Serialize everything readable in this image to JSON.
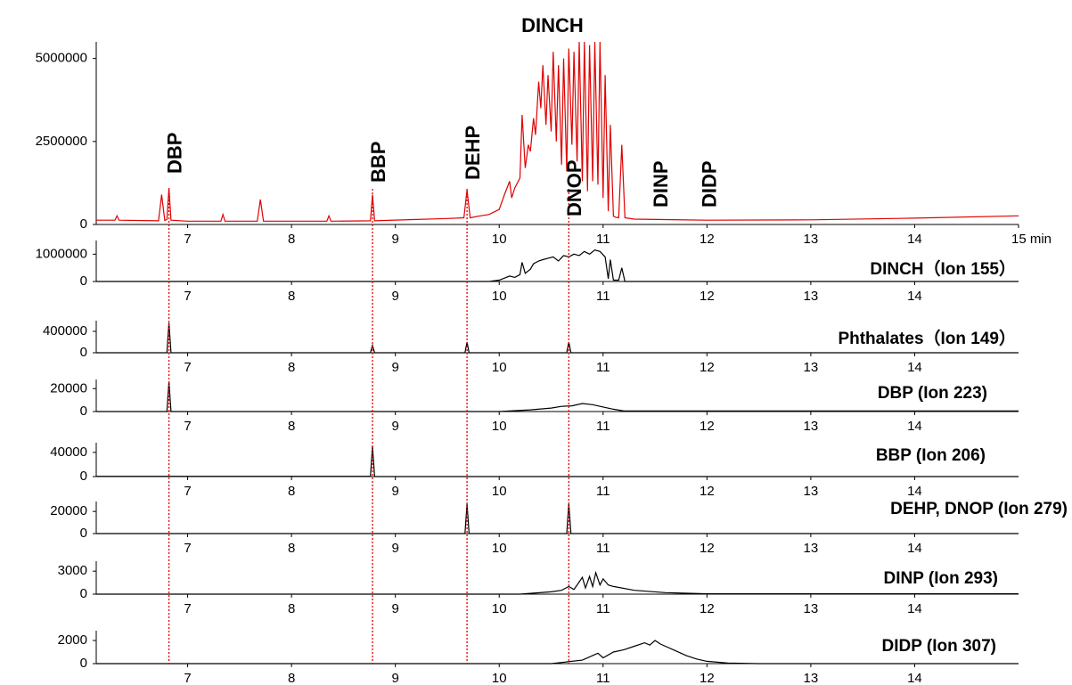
{
  "chart_data": [
    {
      "type": "line",
      "title": "DINCH",
      "color": "#e00000",
      "xlim": [
        6.12,
        15
      ],
      "xticks": [
        7,
        8,
        9,
        10,
        11,
        12,
        13,
        14,
        {
          "value": 15,
          "label": "15 min"
        }
      ],
      "ylim": [
        0,
        5500000
      ],
      "yticks": [
        0,
        2500000,
        5000000
      ],
      "x": [
        6.12,
        6.3,
        6.32,
        6.34,
        6.72,
        6.75,
        6.78,
        6.8,
        6.82,
        6.84,
        7.0,
        7.32,
        7.34,
        7.36,
        7.67,
        7.7,
        7.73,
        8.34,
        8.36,
        8.38,
        8.76,
        8.78,
        8.8,
        9.2,
        9.4,
        9.5,
        9.66,
        9.69,
        9.72,
        9.8,
        9.9,
        10.0,
        10.05,
        10.1,
        10.12,
        10.15,
        10.2,
        10.22,
        10.25,
        10.28,
        10.3,
        10.33,
        10.35,
        10.38,
        10.4,
        10.42,
        10.45,
        10.47,
        10.5,
        10.52,
        10.55,
        10.57,
        10.6,
        10.62,
        10.65,
        10.67,
        10.7,
        10.72,
        10.75,
        10.77,
        10.8,
        10.82,
        10.85,
        10.87,
        10.9,
        10.92,
        10.95,
        10.97,
        11.0,
        11.02,
        11.05,
        11.07,
        11.1,
        11.12,
        11.15,
        11.18,
        11.21,
        11.3,
        12,
        13,
        14,
        15
      ],
      "values": [
        130000,
        130000,
        260000,
        130000,
        110000,
        900000,
        120000,
        150000,
        1100000,
        130000,
        100000,
        100000,
        300000,
        100000,
        100000,
        750000,
        100000,
        100000,
        260000,
        100000,
        110000,
        900000,
        110000,
        150000,
        170000,
        180000,
        200000,
        1050000,
        200000,
        250000,
        300000,
        450000,
        900000,
        1300000,
        800000,
        1100000,
        1400000,
        3300000,
        1700000,
        2400000,
        2200000,
        3200000,
        2700000,
        4300000,
        3500000,
        4800000,
        3000000,
        4500000,
        2800000,
        5200000,
        2500000,
        4800000,
        1800000,
        5000000,
        1600000,
        5300000,
        2400000,
        5200000,
        1900000,
        5500000,
        1300000,
        5500000,
        1000000,
        5400000,
        1300000,
        5500000,
        1200000,
        5500000,
        800000,
        4500000,
        400000,
        3000000,
        250000,
        220000,
        200000,
        2400000,
        200000,
        160000,
        130000,
        140000,
        190000,
        260000
      ],
      "annotations": [
        {
          "text": "DBP",
          "x": 6.82,
          "line": true
        },
        {
          "text": "BBP",
          "x": 8.78,
          "line": true
        },
        {
          "text": "DEHP",
          "x": 9.69,
          "line": true
        },
        {
          "text": "DNOP",
          "x": 10.67,
          "line": true
        },
        {
          "text": "DINP",
          "x": 11.5,
          "line": false
        },
        {
          "text": "DIDP",
          "x": 11.97,
          "line": false
        }
      ]
    },
    {
      "type": "line",
      "label": "DINCH（Ion 155）",
      "color": "#000000",
      "xlim": [
        6.12,
        15
      ],
      "xticks": [
        7,
        8,
        9,
        10,
        11,
        12,
        13,
        14
      ],
      "ylim": [
        0,
        1500000
      ],
      "yticks": [
        0,
        1000000
      ],
      "x": [
        6.12,
        9.9,
        10.0,
        10.1,
        10.15,
        10.2,
        10.22,
        10.25,
        10.3,
        10.33,
        10.38,
        10.42,
        10.47,
        10.52,
        10.57,
        10.62,
        10.67,
        10.72,
        10.77,
        10.82,
        10.87,
        10.92,
        10.97,
        11.02,
        11.05,
        11.07,
        11.1,
        11.15,
        11.18,
        11.21,
        11.3,
        15
      ],
      "values": [
        0,
        0,
        50000,
        200000,
        150000,
        250000,
        700000,
        300000,
        450000,
        650000,
        750000,
        800000,
        850000,
        900000,
        750000,
        950000,
        900000,
        1000000,
        950000,
        1100000,
        1000000,
        1150000,
        1100000,
        900000,
        100000,
        800000,
        50000,
        50000,
        500000,
        0,
        0,
        0
      ]
    },
    {
      "type": "line",
      "label": "Phthalates（Ion 149）",
      "color": "#000000",
      "xlim": [
        6.12,
        15
      ],
      "xticks": [
        7,
        8,
        9,
        10,
        11,
        12,
        13,
        14
      ],
      "ylim": [
        0,
        600000
      ],
      "yticks": [
        0,
        400000
      ],
      "x": [
        6.12,
        6.8,
        6.82,
        6.84,
        8.76,
        8.78,
        8.8,
        9.67,
        9.69,
        9.71,
        10.65,
        10.67,
        10.69,
        15
      ],
      "values": [
        0,
        0,
        560000,
        0,
        0,
        140000,
        0,
        0,
        200000,
        0,
        0,
        200000,
        0,
        0
      ]
    },
    {
      "type": "line",
      "label": "DBP (Ion 223)",
      "color": "#000000",
      "xlim": [
        6.12,
        15
      ],
      "xticks": [
        7,
        8,
        9,
        10,
        11,
        12,
        13,
        14
      ],
      "ylim": [
        0,
        28000
      ],
      "yticks": [
        0,
        20000
      ],
      "x": [
        6.12,
        6.8,
        6.82,
        6.84,
        10.0,
        10.3,
        10.5,
        10.6,
        10.7,
        10.8,
        10.9,
        11.0,
        11.1,
        11.2,
        15
      ],
      "values": [
        0,
        0,
        26000,
        0,
        0,
        1500,
        3000,
        4500,
        5000,
        7000,
        6000,
        4000,
        2000,
        500,
        500
      ]
    },
    {
      "type": "line",
      "label": "BBP (Ion 206)",
      "color": "#000000",
      "xlim": [
        6.12,
        15
      ],
      "xticks": [
        7,
        8,
        9,
        10,
        11,
        12,
        13,
        14
      ],
      "ylim": [
        0,
        56000
      ],
      "yticks": [
        0,
        40000
      ],
      "x": [
        6.12,
        8.76,
        8.78,
        8.8,
        15
      ],
      "values": [
        500,
        500,
        50000,
        0,
        0
      ]
    },
    {
      "type": "line",
      "label": "DEHP, DNOP (Ion 279)",
      "color": "#000000",
      "xlim": [
        6.12,
        15
      ],
      "xticks": [
        7,
        8,
        9,
        10,
        11,
        12,
        13,
        14
      ],
      "ylim": [
        0,
        29000
      ],
      "yticks": [
        0,
        20000
      ],
      "x": [
        6.12,
        9.67,
        9.69,
        9.71,
        10.65,
        10.67,
        10.69,
        15
      ],
      "values": [
        0,
        0,
        27000,
        0,
        0,
        27000,
        0,
        0
      ]
    },
    {
      "type": "line",
      "label": "DINP (Ion 293)",
      "color": "#000000",
      "xlim": [
        6.12,
        15
      ],
      "xticks": [
        7,
        8,
        9,
        10,
        11,
        12,
        13,
        14
      ],
      "ylim": [
        0,
        4300
      ],
      "yticks": [
        0,
        3000
      ],
      "x": [
        6.12,
        10.2,
        10.5,
        10.6,
        10.67,
        10.72,
        10.8,
        10.83,
        10.87,
        10.9,
        10.93,
        10.97,
        11.0,
        11.05,
        11.1,
        11.3,
        11.6,
        12,
        15
      ],
      "values": [
        0,
        0,
        300,
        500,
        1000,
        600,
        2200,
        800,
        2300,
        1000,
        2800,
        1200,
        2000,
        1200,
        1000,
        500,
        200,
        50,
        50
      ]
    },
    {
      "type": "line",
      "label": "DIDP (Ion 307)",
      "color": "#000000",
      "xlim": [
        6.12,
        15
      ],
      "xticks": [
        7,
        8,
        9,
        10,
        11,
        12,
        13,
        14
      ],
      "ylim": [
        0,
        2850
      ],
      "yticks": [
        0,
        2000
      ],
      "x": [
        6.12,
        10.5,
        10.8,
        10.95,
        11.0,
        11.1,
        11.2,
        11.3,
        11.4,
        11.45,
        11.5,
        11.55,
        11.6,
        11.7,
        11.8,
        11.9,
        12.0,
        12.2,
        12.5,
        15
      ],
      "values": [
        0,
        0,
        300,
        900,
        500,
        1000,
        1200,
        1500,
        1800,
        1600,
        2000,
        1700,
        1500,
        1100,
        700,
        400,
        200,
        50,
        0,
        0
      ]
    }
  ]
}
